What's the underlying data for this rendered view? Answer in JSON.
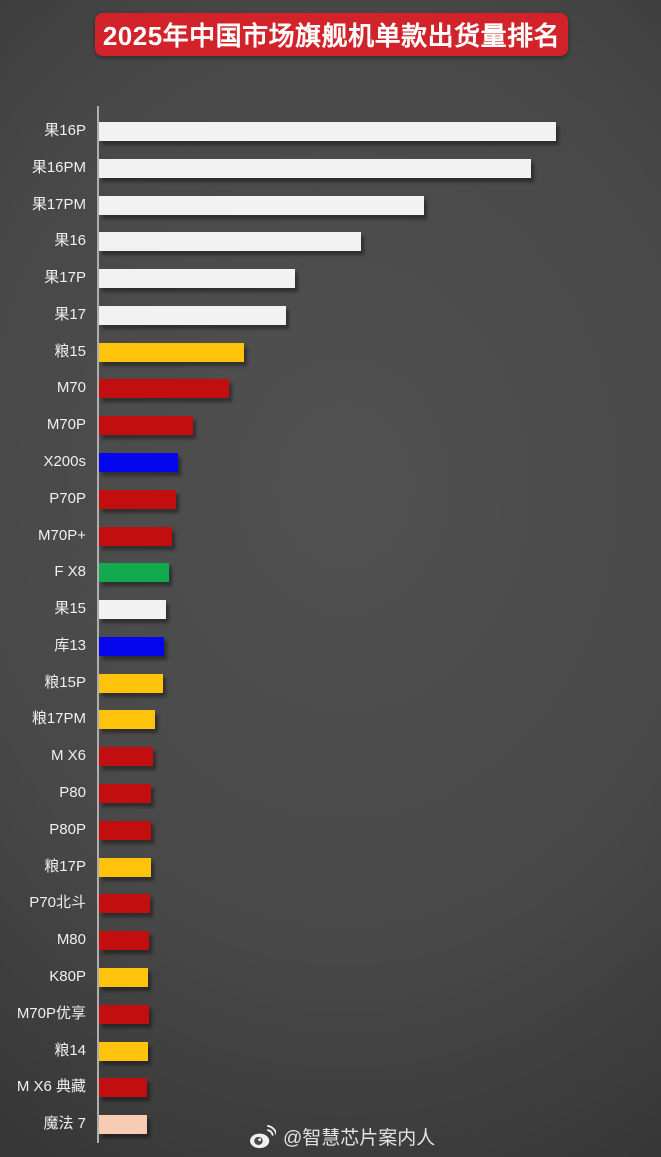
{
  "title": {
    "text": "2025年中国市场旗舰机单款出货量排名",
    "bg_color": "#d2232a",
    "text_color": "#ffffff"
  },
  "watermark": {
    "handle": "@智慧芯片案内人",
    "icon": "weibo-icon",
    "color": "#e2e2e2"
  },
  "colors": {
    "background_center": "#4f4f4f",
    "background_edge": "#1e1e1e",
    "axis_line": "#aeaeae",
    "label_text": "#efefef",
    "bar_white": "#f2f2f2",
    "bar_yellow": "#ffc30b",
    "bar_red": "#c20e0e",
    "bar_blue": "#0606ee",
    "bar_green": "#13a94f",
    "bar_peach": "#f6cdb2"
  },
  "chart_data": {
    "type": "bar",
    "orientation": "horizontal",
    "title": "2025年中国市场旗舰机单款出货量排名",
    "xlabel": "",
    "ylabel": "",
    "value_axis_visible": false,
    "note": "No numeric axis shown in source; values are relative bar lengths in pixels estimated from the screenshot.",
    "bars": [
      {
        "label": "果16P",
        "value": 457,
        "color": "#f2f2f2"
      },
      {
        "label": "果16PM",
        "value": 432,
        "color": "#f2f2f2"
      },
      {
        "label": "果17PM",
        "value": 325,
        "color": "#f2f2f2"
      },
      {
        "label": "果16",
        "value": 262,
        "color": "#f2f2f2"
      },
      {
        "label": "果17P",
        "value": 196,
        "color": "#f2f2f2"
      },
      {
        "label": "果17",
        "value": 187,
        "color": "#f2f2f2"
      },
      {
        "label": "粮15",
        "value": 145,
        "color": "#ffc30b"
      },
      {
        "label": "M70",
        "value": 130,
        "color": "#c20e0e"
      },
      {
        "label": "M70P",
        "value": 94,
        "color": "#c20e0e"
      },
      {
        "label": "X200s",
        "value": 79,
        "color": "#0606ee"
      },
      {
        "label": "P70P",
        "value": 77,
        "color": "#c20e0e"
      },
      {
        "label": "M70P+",
        "value": 73,
        "color": "#c20e0e"
      },
      {
        "label": "F X8",
        "value": 70,
        "color": "#13a94f"
      },
      {
        "label": "果15",
        "value": 67,
        "color": "#f2f2f2"
      },
      {
        "label": "库13",
        "value": 65,
        "color": "#0606ee"
      },
      {
        "label": "粮15P",
        "value": 64,
        "color": "#ffc30b"
      },
      {
        "label": "粮17PM",
        "value": 56,
        "color": "#ffc30b"
      },
      {
        "label": "M X6",
        "value": 54,
        "color": "#c20e0e"
      },
      {
        "label": "P80",
        "value": 52,
        "color": "#c20e0e"
      },
      {
        "label": "P80P",
        "value": 52,
        "color": "#c20e0e"
      },
      {
        "label": "粮17P",
        "value": 52,
        "color": "#ffc30b"
      },
      {
        "label": "P70北斗",
        "value": 51,
        "color": "#c20e0e"
      },
      {
        "label": "M80",
        "value": 50,
        "color": "#c20e0e"
      },
      {
        "label": "K80P",
        "value": 49,
        "color": "#ffc30b"
      },
      {
        "label": "M70P优享",
        "value": 50,
        "color": "#c20e0e"
      },
      {
        "label": "粮14",
        "value": 49,
        "color": "#ffc30b"
      },
      {
        "label": "M X6 典藏",
        "value": 48,
        "color": "#c20e0e"
      },
      {
        "label": "魔法 7",
        "value": 48,
        "color": "#f6cdb2"
      }
    ]
  }
}
